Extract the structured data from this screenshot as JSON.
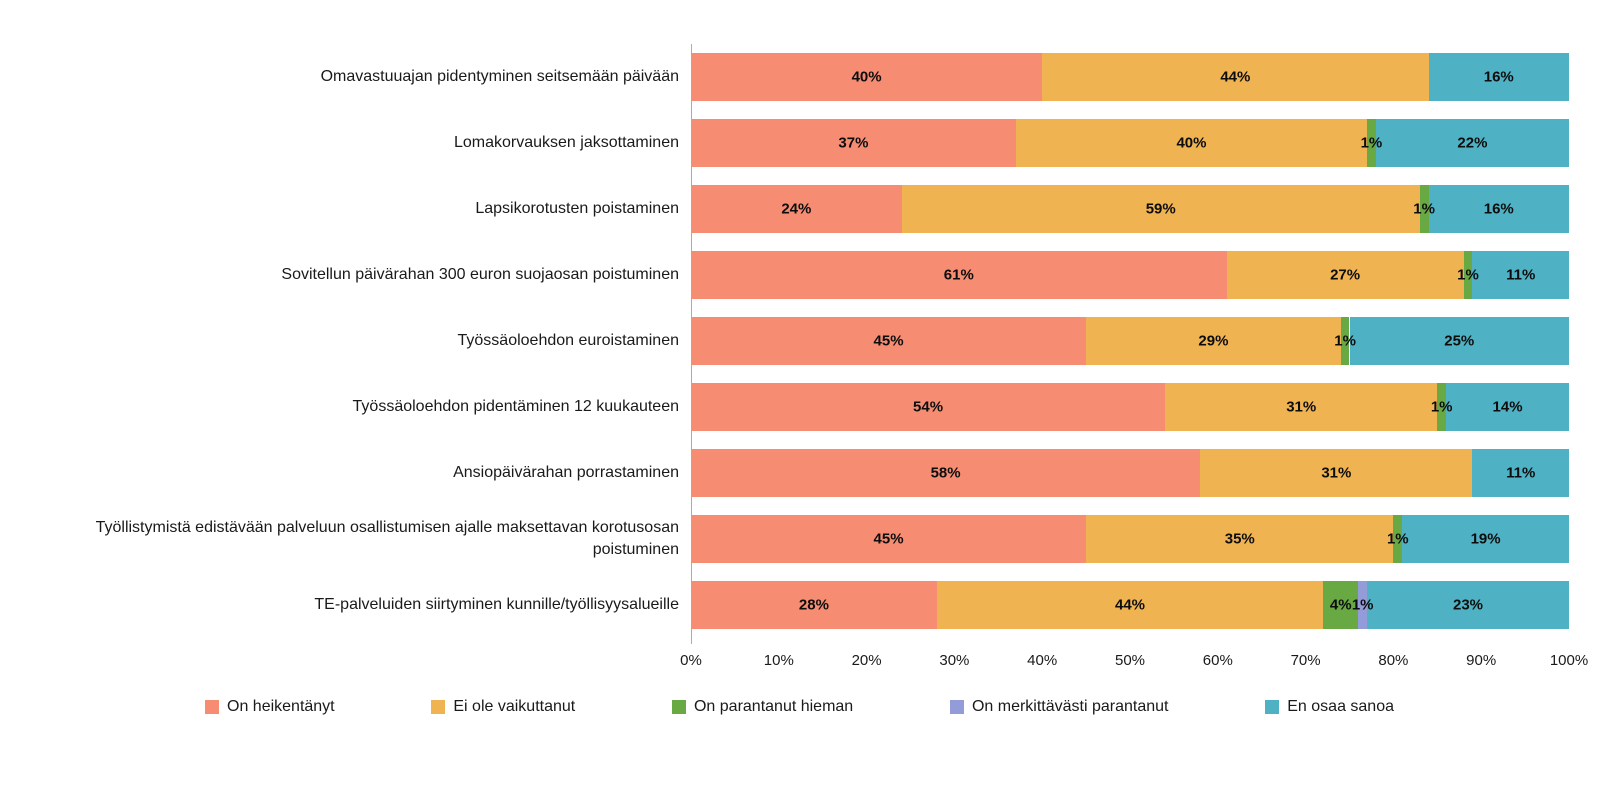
{
  "chart_data": {
    "type": "bar",
    "orientation": "horizontal",
    "stacked": true,
    "unit": "%",
    "title": "",
    "xlabel": "",
    "ylabel": "",
    "xlim": [
      0,
      100
    ],
    "grid": false,
    "legend_position": "bottom",
    "data_labels": "shown on segments, values of 0 hidden",
    "categories": [
      "Omavastuuajan pidentyminen seitsemään päivään",
      "Lomakorvauksen jaksottaminen",
      "Lapsikorotusten poistaminen",
      "Sovitellun päivärahan 300 euron suojaosan poistuminen",
      "Työssäoloehdon euroistaminen",
      "Työssäoloehdon pidentäminen 12 kuukauteen",
      "Ansiopäivärahan porrastaminen",
      "Työllistymistä edistävään palveluun osallistumisen ajalle maksettavan korotusosan poistuminen",
      "TE-palveluiden siirtyminen kunnille/työllisyysalueille"
    ],
    "series": [
      {
        "name": "On heikentänyt",
        "slug": "on-heikentanyt",
        "color": "#F68D73",
        "values": [
          40,
          37,
          24,
          61,
          45,
          54,
          58,
          45,
          28
        ]
      },
      {
        "name": "Ei ole vaikuttanut",
        "slug": "ei-ole-vaikuttanut",
        "color": "#F0B351",
        "values": [
          44,
          40,
          59,
          27,
          29,
          31,
          31,
          35,
          44
        ]
      },
      {
        "name": "On parantanut hieman",
        "slug": "on-parantanut-hieman",
        "color": "#68A943",
        "values": [
          0,
          1,
          1,
          1,
          1,
          1,
          0,
          1,
          4
        ]
      },
      {
        "name": "On merkittävästi parantanut",
        "slug": "on-merkittavasti-parantanut",
        "color": "#939BD9",
        "values": [
          0,
          0,
          0,
          0,
          0,
          0,
          0,
          0,
          1
        ]
      },
      {
        "name": "En osaa sanoa",
        "slug": "en-osaa-sanoa",
        "color": "#4EB2C4",
        "values": [
          16,
          22,
          16,
          11,
          25,
          14,
          11,
          19,
          23
        ]
      }
    ],
    "x_axis_ticks": [
      "0%",
      "10%",
      "20%",
      "30%",
      "40%",
      "50%",
      "60%",
      "70%",
      "80%",
      "90%",
      "100%"
    ]
  },
  "colors": {
    "axis_line": "#ababab",
    "text": "#1a1a1a",
    "background": "#ffffff"
  }
}
